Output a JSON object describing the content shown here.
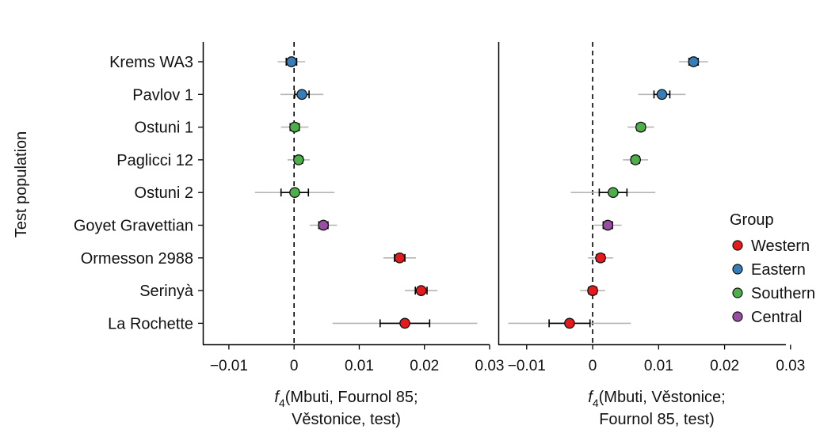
{
  "chart_data": {
    "type": "scatter",
    "ylabel": "Test population",
    "categories": [
      "Krems WA3",
      "Pavlov 1",
      "Ostuni 1",
      "Paglicci 12",
      "Ostuni 2",
      "Goyet Gravettian",
      "Ormesson 2988",
      "Serinyà",
      "La Rochette"
    ],
    "group_of_category": [
      "Eastern",
      "Eastern",
      "Southern",
      "Southern",
      "Southern",
      "Central",
      "Western",
      "Western",
      "Western"
    ],
    "legend": {
      "title": "Group",
      "placement": "right",
      "entries": [
        {
          "name": "Western",
          "color": "#e41a1c"
        },
        {
          "name": "Eastern",
          "color": "#377eb8"
        },
        {
          "name": "Southern",
          "color": "#4daf4a"
        },
        {
          "name": "Central",
          "color": "#984ea3"
        }
      ]
    },
    "panels": [
      {
        "xlabel_prefix": "f",
        "xlabel_sub": "4",
        "xlabel_line1": "(Mbuti, Fournol 85;",
        "xlabel_line2": "Věstonice, test)",
        "xlim": [
          -0.014,
          0.03
        ],
        "xticks": [
          "−0.01",
          "0",
          "0.01",
          "0.02",
          "0.03"
        ],
        "xtick_values": [
          -0.01,
          0,
          0.01,
          0.02,
          0.03
        ],
        "reference_line": 0,
        "points": [
          {
            "value": -0.0004,
            "se1": 0.0008,
            "se3": 0.0021
          },
          {
            "value": 0.0012,
            "se1": 0.0011,
            "se3": 0.0033
          },
          {
            "value": 0.0001,
            "se1": 0.0007,
            "se3": 0.0021
          },
          {
            "value": 0.0007,
            "se1": 0.0006,
            "se3": 0.0017
          },
          {
            "value": 0.0001,
            "se1": 0.0021,
            "se3": 0.0061
          },
          {
            "value": 0.0045,
            "se1": 0.0007,
            "se3": 0.0021
          },
          {
            "value": 0.0162,
            "se1": 0.0008,
            "se3": 0.0025
          },
          {
            "value": 0.0195,
            "se1": 0.0009,
            "se3": 0.0025
          },
          {
            "value": 0.017,
            "se1": 0.0038,
            "se3": 0.0111
          }
        ]
      },
      {
        "xlabel_prefix": "f",
        "xlabel_sub": "4",
        "xlabel_line1": "(Mbuti, Věstonice;",
        "xlabel_line2": "Fournol 85, test)",
        "xlim": [
          -0.0143,
          0.0293
        ],
        "xticks": [
          "−0.01",
          "0",
          "0.01",
          "0.02",
          "0.03"
        ],
        "xtick_values": [
          -0.01,
          0,
          0.01,
          0.02,
          0.03
        ],
        "reference_line": 0,
        "points": [
          {
            "value": 0.0153,
            "se1": 0.0007,
            "se3": 0.0022
          },
          {
            "value": 0.0105,
            "se1": 0.0012,
            "se3": 0.0036
          },
          {
            "value": 0.0073,
            "se1": 0.0006,
            "se3": 0.002
          },
          {
            "value": 0.0065,
            "se1": 0.0006,
            "se3": 0.0019
          },
          {
            "value": 0.0031,
            "se1": 0.0021,
            "se3": 0.0064
          },
          {
            "value": 0.0023,
            "se1": 0.0007,
            "se3": 0.0021
          },
          {
            "value": 0.0012,
            "se1": 0.0006,
            "se3": 0.0019
          },
          {
            "value": 0.0,
            "se1": 0.0006,
            "se3": 0.0019
          },
          {
            "value": -0.0035,
            "se1": 0.0031,
            "se3": 0.0093
          }
        ]
      }
    ]
  }
}
